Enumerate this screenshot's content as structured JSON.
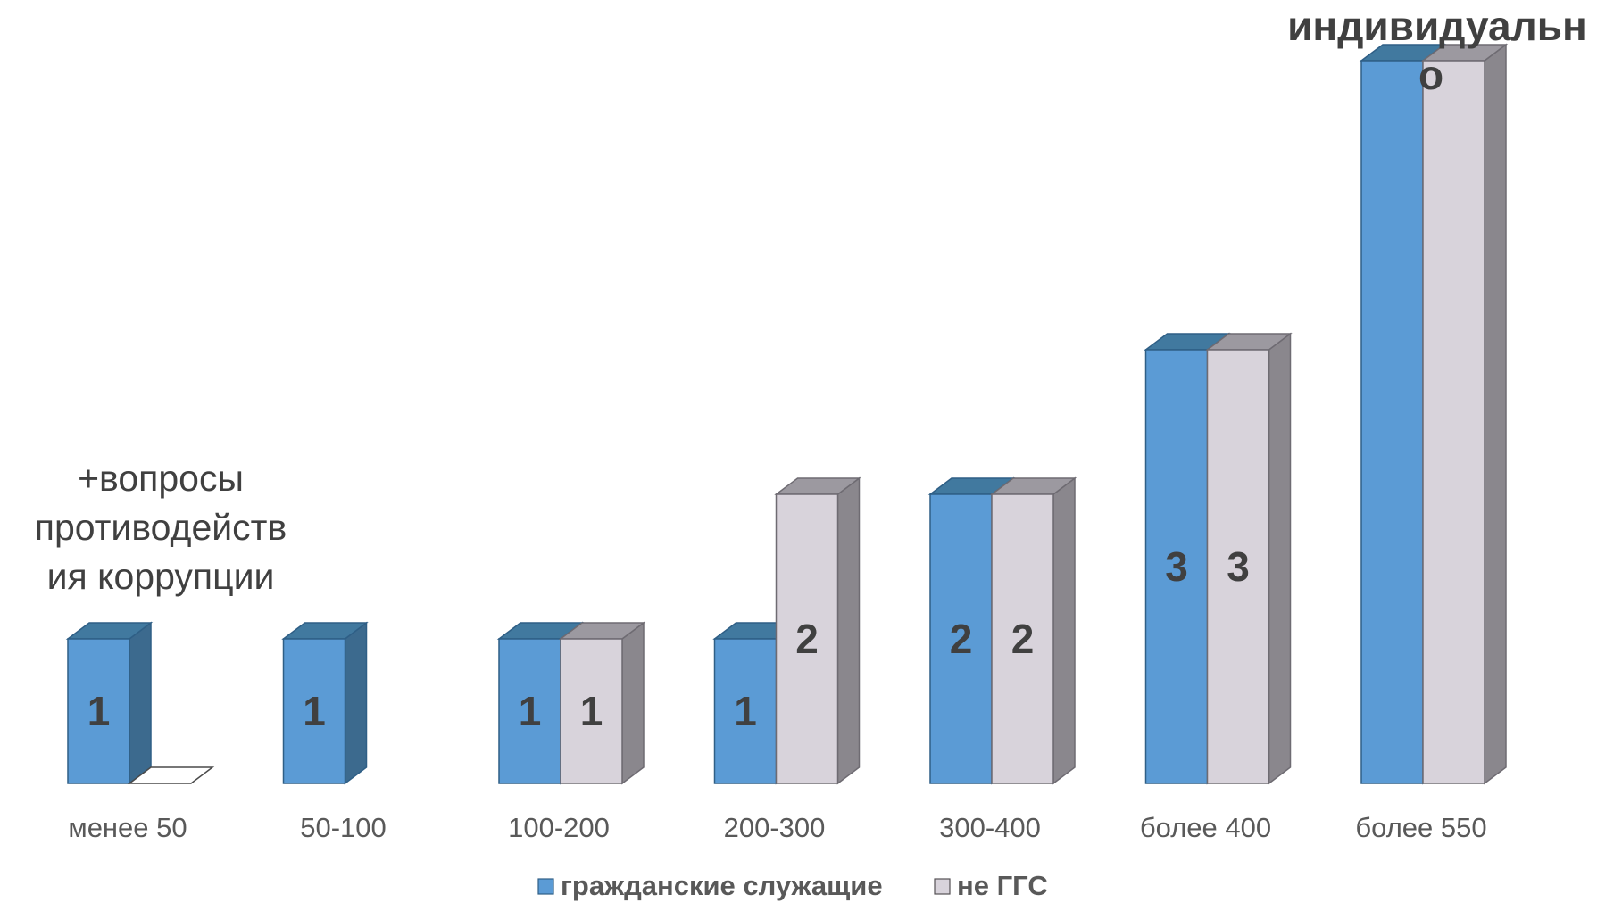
{
  "chart_data": {
    "type": "bar",
    "categories": [
      "менее 50",
      "50-100",
      "100-200",
      "200-300",
      "300-400",
      "более 400",
      "более 550"
    ],
    "series": [
      {
        "name": "гражданские служащие",
        "values": [
          1,
          1,
          1,
          1,
          2,
          3,
          5
        ],
        "labels": [
          "1",
          "1",
          "1",
          "1",
          "2",
          "3",
          ""
        ],
        "color": "#5B9BD5"
      },
      {
        "name": "не ГГС",
        "values": [
          0,
          null,
          1,
          2,
          2,
          3,
          5
        ],
        "labels": [
          "",
          "",
          "1",
          "2",
          "2",
          "3",
          ""
        ],
        "color": "#D8D3DB"
      }
    ],
    "legend_placement": "bottom",
    "grid": false,
    "style": "3d-column",
    "annotations": [
      {
        "category": "менее 50",
        "text": [
          "+вопросы",
          "противодейств",
          "ия коррупции"
        ]
      },
      {
        "category": "более 550",
        "text": [
          "индивидуальн",
          "о"
        ]
      }
    ]
  }
}
